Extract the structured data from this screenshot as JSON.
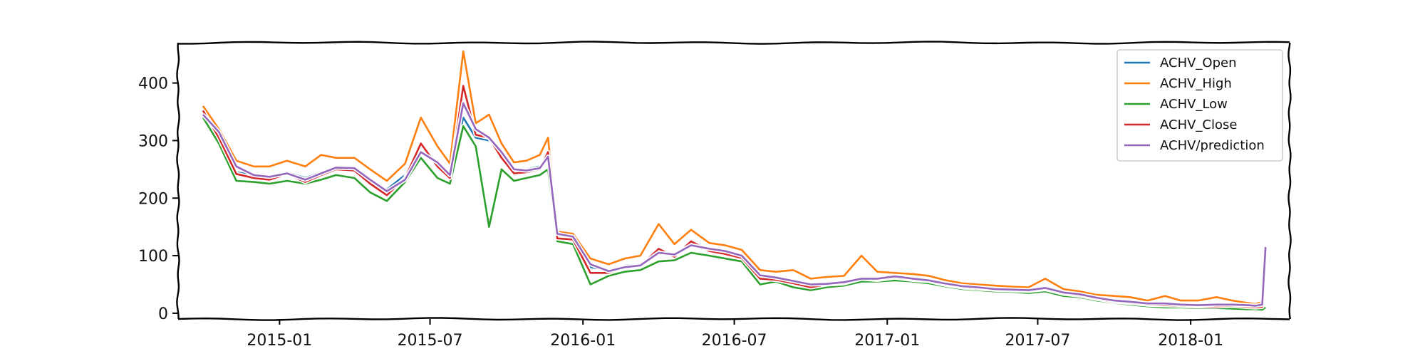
{
  "chart_data": {
    "type": "line",
    "title": "",
    "xlabel": "",
    "ylabel": "",
    "x_range": [
      "2014-09-01",
      "2018-04-30"
    ],
    "ylim": [
      -10,
      470
    ],
    "grid": false,
    "legend_placement": "top-right",
    "x_ticks": [
      {
        "date": "2015-01-01",
        "label": "2015-01"
      },
      {
        "date": "2015-07-01",
        "label": "2015-07"
      },
      {
        "date": "2016-01-01",
        "label": "2016-01"
      },
      {
        "date": "2016-07-01",
        "label": "2016-07"
      },
      {
        "date": "2017-01-01",
        "label": "2017-01"
      },
      {
        "date": "2017-07-01",
        "label": "2017-07"
      },
      {
        "date": "2018-01-01",
        "label": "2018-01"
      }
    ],
    "y_ticks": [
      {
        "value": 0,
        "label": "0"
      },
      {
        "value": 100,
        "label": "100"
      },
      {
        "value": 200,
        "label": "200"
      },
      {
        "value": 300,
        "label": "300"
      },
      {
        "value": 400,
        "label": "400"
      }
    ],
    "x": [
      "2014-10-01",
      "2014-10-20",
      "2014-11-10",
      "2014-12-01",
      "2014-12-20",
      "2015-01-10",
      "2015-02-01",
      "2015-02-20",
      "2015-03-10",
      "2015-04-01",
      "2015-04-20",
      "2015-05-10",
      "2015-06-01",
      "2015-06-20",
      "2015-07-10",
      "2015-07-25",
      "2015-08-10",
      "2015-08-25",
      "2015-09-10",
      "2015-09-25",
      "2015-10-10",
      "2015-10-25",
      "2015-11-10",
      "2015-11-20",
      "2015-12-01",
      "2015-12-20",
      "2016-01-10",
      "2016-02-01",
      "2016-02-20",
      "2016-03-10",
      "2016-04-01",
      "2016-04-20",
      "2016-05-10",
      "2016-06-01",
      "2016-06-20",
      "2016-07-10",
      "2016-08-01",
      "2016-08-20",
      "2016-09-10",
      "2016-10-01",
      "2016-10-20",
      "2016-11-10",
      "2016-12-01",
      "2016-12-20",
      "2017-01-10",
      "2017-02-01",
      "2017-02-20",
      "2017-03-10",
      "2017-04-01",
      "2017-04-20",
      "2017-05-10",
      "2017-06-01",
      "2017-06-20",
      "2017-07-10",
      "2017-08-01",
      "2017-08-20",
      "2017-09-10",
      "2017-10-01",
      "2017-10-20",
      "2017-11-10",
      "2017-12-01",
      "2017-12-20",
      "2018-01-10",
      "2018-02-01",
      "2018-02-20",
      "2018-03-10",
      "2018-03-20",
      "2018-03-28",
      "2018-04-01"
    ],
    "series": [
      {
        "name": "ACHV_Open",
        "color": "#1f77b4",
        "values": [
          350,
          310,
          245,
          240,
          238,
          245,
          235,
          245,
          255,
          252,
          230,
          215,
          240,
          290,
          260,
          240,
          340,
          305,
          300,
          275,
          245,
          250,
          255,
          275,
          135,
          130,
          80,
          75,
          82,
          85,
          110,
          100,
          118,
          110,
          105,
          97,
          65,
          60,
          55,
          48,
          52,
          55,
          62,
          60,
          63,
          60,
          58,
          52,
          47,
          45,
          43,
          42,
          40,
          45,
          36,
          33,
          27,
          22,
          20,
          17,
          16,
          15,
          14,
          14,
          15,
          13,
          12,
          13,
          70
        ]
      },
      {
        "name": "ACHV_High",
        "color": "#ff7f0e",
        "values": [
          360,
          320,
          265,
          255,
          255,
          265,
          255,
          275,
          270,
          270,
          250,
          230,
          260,
          340,
          290,
          260,
          455,
          330,
          345,
          295,
          262,
          265,
          275,
          305,
          142,
          138,
          95,
          85,
          95,
          100,
          155,
          120,
          145,
          122,
          118,
          110,
          75,
          72,
          75,
          60,
          63,
          65,
          100,
          72,
          70,
          68,
          65,
          58,
          52,
          50,
          48,
          46,
          45,
          60,
          42,
          38,
          32,
          30,
          28,
          22,
          30,
          22,
          22,
          28,
          22,
          18,
          16,
          20,
          115
        ]
      },
      {
        "name": "ACHV_Low",
        "color": "#2ca02c",
        "values": [
          340,
          295,
          230,
          228,
          225,
          230,
          225,
          232,
          240,
          235,
          210,
          195,
          228,
          270,
          235,
          225,
          325,
          290,
          150,
          250,
          230,
          235,
          240,
          250,
          125,
          120,
          50,
          65,
          72,
          75,
          90,
          92,
          105,
          100,
          95,
          90,
          50,
          55,
          45,
          40,
          45,
          48,
          55,
          55,
          57,
          55,
          52,
          47,
          42,
          40,
          38,
          37,
          35,
          38,
          30,
          28,
          22,
          18,
          15,
          12,
          10,
          10,
          9,
          9,
          8,
          7,
          7,
          6,
          10
        ]
      },
      {
        "name": "ACHV_Close",
        "color": "#d62728",
        "values": [
          352,
          305,
          242,
          235,
          232,
          242,
          228,
          240,
          250,
          248,
          225,
          205,
          235,
          295,
          255,
          235,
          395,
          310,
          305,
          270,
          243,
          245,
          250,
          280,
          130,
          128,
          70,
          70,
          80,
          82,
          112,
          98,
          125,
          108,
          103,
          96,
          60,
          58,
          52,
          45,
          50,
          52,
          60,
          58,
          62,
          58,
          56,
          50,
          45,
          43,
          41,
          40,
          39,
          42,
          34,
          31,
          25,
          20,
          18,
          15,
          14,
          13,
          12,
          12,
          13,
          11,
          10,
          11,
          95
        ]
      },
      {
        "name": "ACHV/prediction",
        "color": "#9467bd",
        "values": [
          345,
          315,
          255,
          240,
          237,
          243,
          232,
          243,
          253,
          252,
          232,
          212,
          232,
          280,
          262,
          240,
          365,
          320,
          305,
          280,
          250,
          248,
          252,
          272,
          138,
          133,
          85,
          73,
          80,
          83,
          105,
          102,
          118,
          112,
          108,
          100,
          66,
          62,
          56,
          50,
          51,
          54,
          60,
          60,
          64,
          60,
          57,
          52,
          47,
          45,
          42,
          41,
          40,
          44,
          36,
          33,
          27,
          22,
          20,
          17,
          17,
          15,
          14,
          15,
          15,
          14,
          13,
          15,
          115
        ]
      }
    ]
  }
}
